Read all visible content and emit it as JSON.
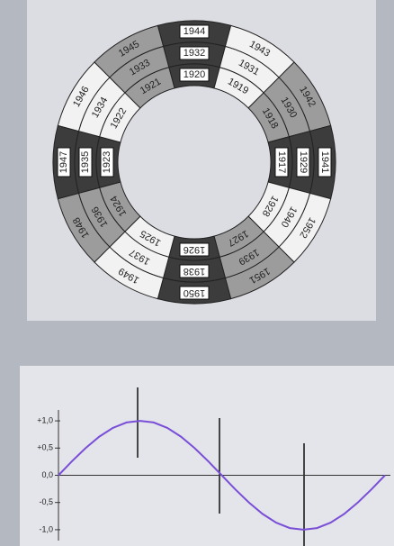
{
  "diagram": {
    "sectors": [
      {
        "years": [
          "1944",
          "1932",
          "1920"
        ],
        "shade": "#3c3c3c"
      },
      {
        "years": [
          "1943",
          "1931",
          "1919"
        ],
        "shade": "#f2f2f2"
      },
      {
        "years": [
          "1942",
          "1930",
          "1918"
        ],
        "shade": "#9c9c9c"
      },
      {
        "years": [
          "1941",
          "1929",
          "1917"
        ],
        "shade": "#3c3c3c"
      },
      {
        "years": [
          "1952",
          "1940",
          "1928"
        ],
        "shade": "#f2f2f2"
      },
      {
        "years": [
          "1951",
          "1939",
          "1927"
        ],
        "shade": "#9c9c9c"
      },
      {
        "years": [
          "1950",
          "1938",
          "1926"
        ],
        "shade": "#3c3c3c"
      },
      {
        "years": [
          "1949",
          "1937",
          "1925"
        ],
        "shade": "#f2f2f2"
      },
      {
        "years": [
          "1948",
          "1936",
          "1924"
        ],
        "shade": "#9c9c9c"
      },
      {
        "years": [
          "1947",
          "1935",
          "1923"
        ],
        "shade": "#3c3c3c"
      },
      {
        "years": [
          "1946",
          "1934",
          "1922"
        ],
        "shade": "#f2f2f2"
      },
      {
        "years": [
          "1945",
          "1933",
          "1921"
        ],
        "shade": "#9c9c9c"
      }
    ]
  },
  "chart_data": {
    "type": "line",
    "x": [
      0,
      15,
      30,
      45,
      60,
      75,
      90,
      105,
      120,
      135,
      150,
      165,
      180,
      195,
      210,
      225,
      240,
      255,
      270,
      285,
      300,
      315,
      330,
      345,
      360
    ],
    "series": [
      {
        "color": "#7a4fd8",
        "values": [
          0,
          0.26,
          0.5,
          0.71,
          0.87,
          0.97,
          1,
          0.97,
          0.87,
          0.71,
          0.5,
          0.26,
          0,
          -0.26,
          -0.5,
          -0.71,
          -0.87,
          -0.97,
          -1,
          -0.97,
          -0.87,
          -0.71,
          -0.5,
          -0.26,
          0
        ]
      }
    ],
    "xlim": [
      0,
      360
    ],
    "ylim": [
      -1.2,
      1.2
    ],
    "yticks": [
      {
        "value": 1,
        "label": "+1,0"
      },
      {
        "value": 0.5,
        "label": "+0,5"
      },
      {
        "value": 0,
        "label": "0,0"
      },
      {
        "value": -0.5,
        "label": "-0,5"
      },
      {
        "value": -1,
        "label": "-1,0"
      }
    ]
  }
}
